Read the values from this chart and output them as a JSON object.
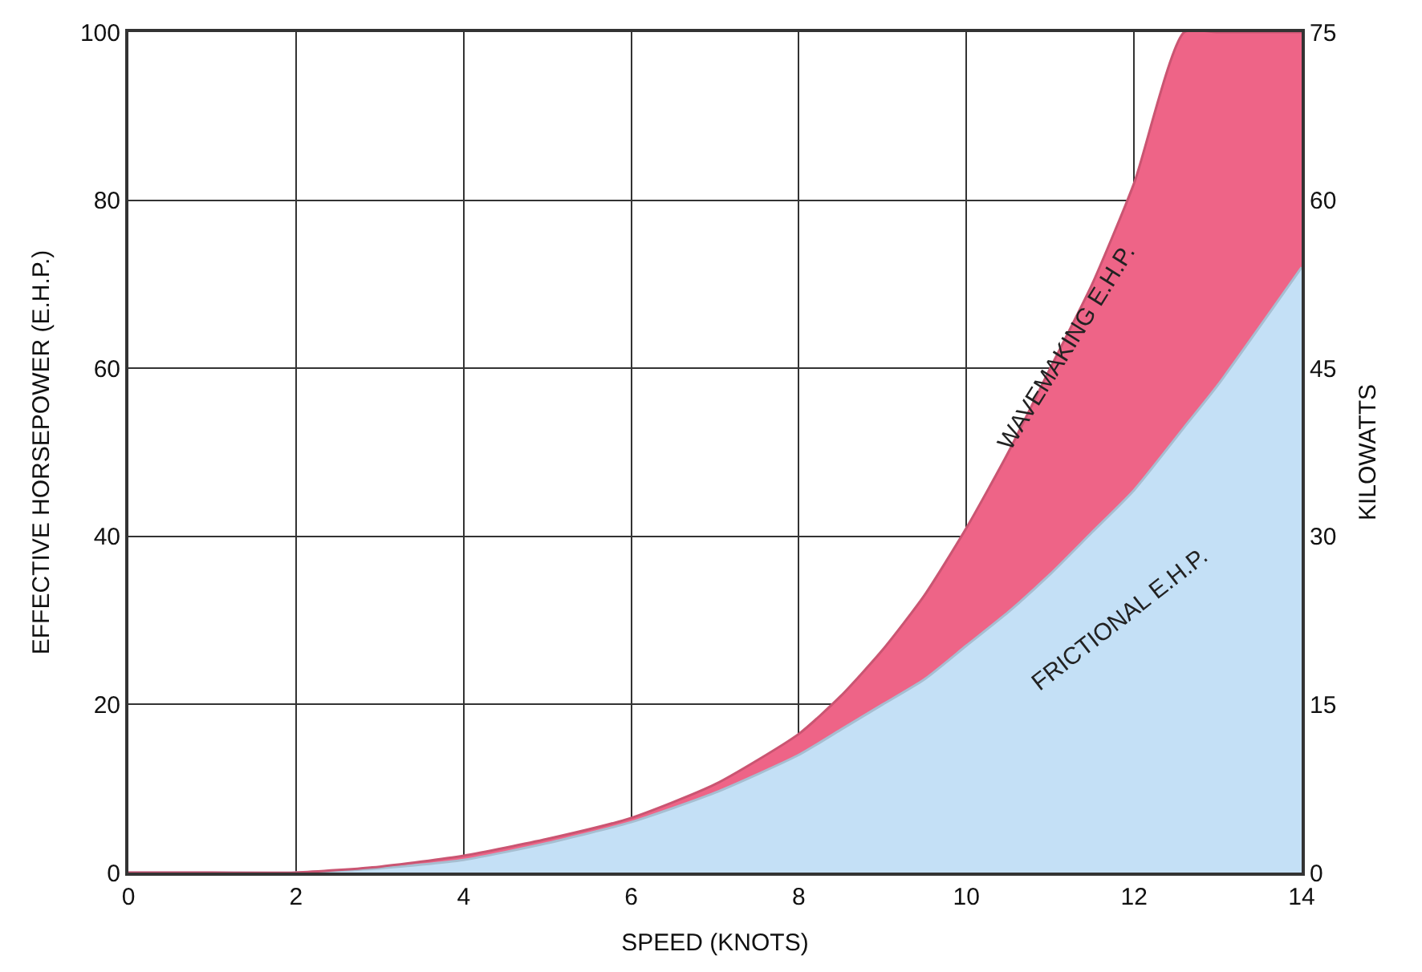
{
  "chart_data": {
    "type": "area",
    "stacked": true,
    "xlabel": "SPEED (KNOTS)",
    "ylabel": "EFFECTIVE HORSEPOWER (E.H.P.)",
    "y2label": "KILOWATTS",
    "x": [
      0,
      1,
      2,
      3,
      4,
      5,
      6,
      7,
      8,
      8.5,
      9,
      9.5,
      10,
      10.5,
      11,
      11.5,
      12,
      12.6,
      13,
      14
    ],
    "series": [
      {
        "color": "#c4e0f6",
        "values": [
          0,
          0,
          0,
          0.5,
          1.5,
          3.5,
          6,
          9.5,
          14,
          17,
          20,
          23,
          27,
          31,
          35.5,
          40.5,
          45.5,
          53,
          58,
          72
        ]
      },
      {
        "color": "#ee6487",
        "values": [
          0,
          0,
          0,
          0.2,
          0.5,
          0.5,
          0.5,
          1,
          2.5,
          4,
          6.5,
          10,
          14,
          19,
          24.5,
          29.5,
          36.5,
          47,
          42,
          28
        ]
      }
    ],
    "xlim": [
      0,
      14
    ],
    "xticks": [
      0,
      2,
      4,
      6,
      8,
      10,
      12,
      14
    ],
    "ylim": [
      0,
      100
    ],
    "yticks": [
      0,
      20,
      40,
      60,
      80,
      100
    ],
    "y2lim": [
      0,
      75
    ],
    "y2ticks": [
      0,
      15,
      30,
      45,
      60,
      75
    ],
    "grid": true,
    "annotations": [
      "WAVEMAKING E.H.P.",
      "FRICTIONAL E.H.P."
    ]
  }
}
